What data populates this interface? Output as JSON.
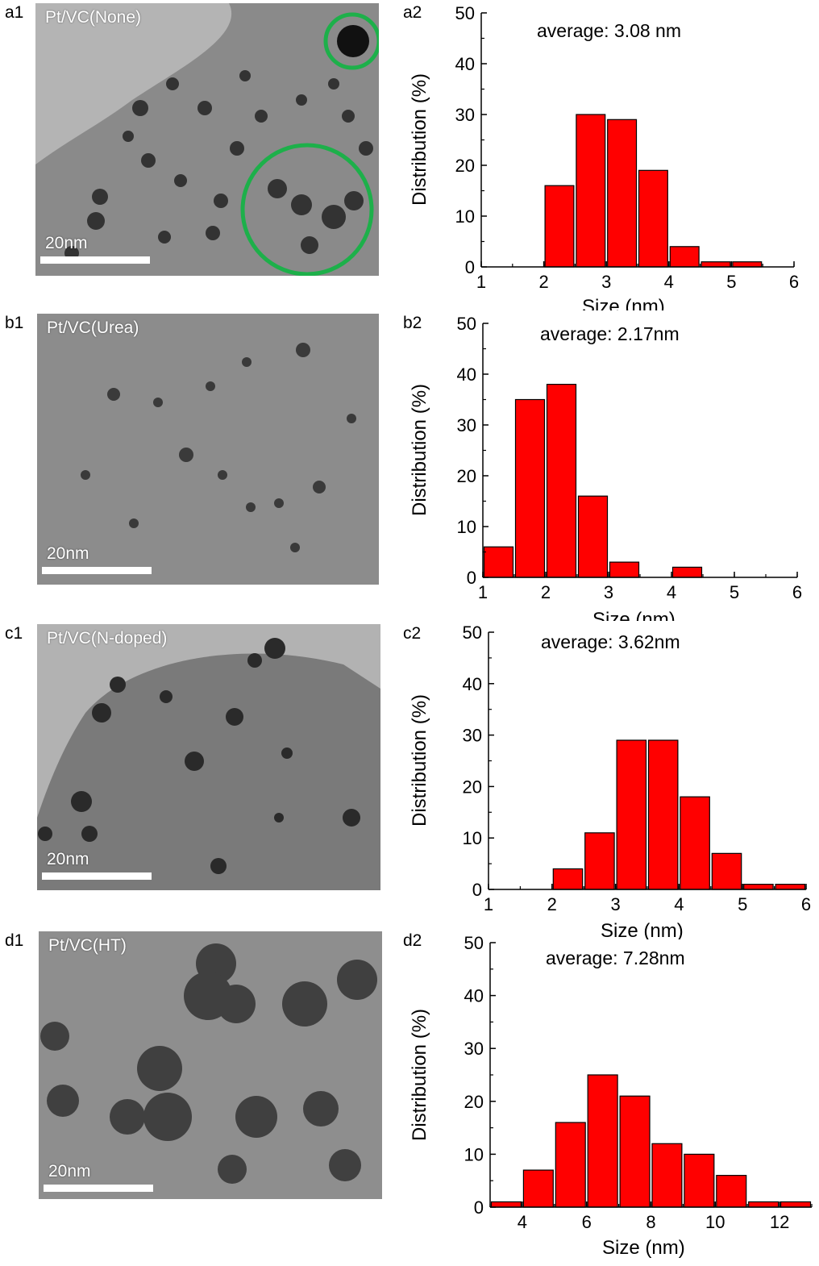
{
  "panels": [
    {
      "tem_tag": "a1",
      "tem_label": "Pt/VC(None)",
      "scale_label": "20nm",
      "chart_tag": "a2"
    },
    {
      "tem_tag": "b1",
      "tem_label": "Pt/VC(Urea)",
      "scale_label": "20nm",
      "chart_tag": "b2"
    },
    {
      "tem_tag": "c1",
      "tem_label": "Pt/VC(N-doped)",
      "scale_label": "20nm",
      "chart_tag": "c2"
    },
    {
      "tem_tag": "d1",
      "tem_label": "Pt/VC(HT)",
      "scale_label": "20nm",
      "chart_tag": "d2"
    }
  ],
  "colors": {
    "bar_fill": "#ff0000",
    "bar_stroke": "#000000",
    "highlight_circle": "#1db04a"
  },
  "chart_data": [
    {
      "type": "bar",
      "annotation": "average: 3.08 nm",
      "xlabel": "Size (nm)",
      "ylabel": "Distribution (%)",
      "xlim": [
        1,
        6
      ],
      "ylim": [
        0,
        50
      ],
      "xticks": [
        1,
        2,
        3,
        4,
        5,
        6
      ],
      "yticks": [
        0,
        10,
        20,
        30,
        40,
        50
      ],
      "bin_width": 0.5,
      "bins": [
        {
          "x": 2.25,
          "y": 16
        },
        {
          "x": 2.75,
          "y": 30
        },
        {
          "x": 3.25,
          "y": 29
        },
        {
          "x": 3.75,
          "y": 19
        },
        {
          "x": 4.25,
          "y": 4
        },
        {
          "x": 4.75,
          "y": 1
        },
        {
          "x": 5.25,
          "y": 1
        }
      ]
    },
    {
      "type": "bar",
      "annotation": "average: 2.17nm",
      "xlabel": "Size (nm)",
      "ylabel": "Distribution (%)",
      "xlim": [
        1,
        6
      ],
      "ylim": [
        0,
        50
      ],
      "xticks": [
        1,
        2,
        3,
        4,
        5,
        6
      ],
      "yticks": [
        0,
        10,
        20,
        30,
        40,
        50
      ],
      "bin_width": 0.5,
      "bins": [
        {
          "x": 1.25,
          "y": 6
        },
        {
          "x": 1.75,
          "y": 35
        },
        {
          "x": 2.25,
          "y": 38
        },
        {
          "x": 2.75,
          "y": 16
        },
        {
          "x": 3.25,
          "y": 3
        },
        {
          "x": 4.25,
          "y": 2
        }
      ]
    },
    {
      "type": "bar",
      "annotation": "average: 3.62nm",
      "xlabel": "Size (nm)",
      "ylabel": "Distribution (%)",
      "xlim": [
        1,
        6
      ],
      "ylim": [
        0,
        50
      ],
      "xticks": [
        1,
        2,
        3,
        4,
        5,
        6
      ],
      "yticks": [
        0,
        10,
        20,
        30,
        40,
        50
      ],
      "bin_width": 0.5,
      "bins": [
        {
          "x": 2.25,
          "y": 4
        },
        {
          "x": 2.75,
          "y": 11
        },
        {
          "x": 3.25,
          "y": 29
        },
        {
          "x": 3.75,
          "y": 29
        },
        {
          "x": 4.25,
          "y": 18
        },
        {
          "x": 4.75,
          "y": 7
        },
        {
          "x": 5.25,
          "y": 1
        },
        {
          "x": 5.75,
          "y": 1
        }
      ]
    },
    {
      "type": "bar",
      "annotation": "average: 7.28nm",
      "xlabel": "Size (nm)",
      "ylabel": "Distribution (%)",
      "xlim": [
        3,
        13
      ],
      "ylim": [
        0,
        50
      ],
      "xticks": [
        4,
        6,
        8,
        10,
        12
      ],
      "yticks": [
        0,
        10,
        20,
        30,
        40,
        50
      ],
      "bin_width": 1,
      "bins": [
        {
          "x": 3.5,
          "y": 1
        },
        {
          "x": 4.5,
          "y": 7
        },
        {
          "x": 5.5,
          "y": 16
        },
        {
          "x": 6.5,
          "y": 25
        },
        {
          "x": 7.5,
          "y": 21
        },
        {
          "x": 8.5,
          "y": 12
        },
        {
          "x": 9.5,
          "y": 10
        },
        {
          "x": 10.5,
          "y": 6
        },
        {
          "x": 11.5,
          "y": 1
        },
        {
          "x": 12.5,
          "y": 1
        }
      ]
    }
  ]
}
